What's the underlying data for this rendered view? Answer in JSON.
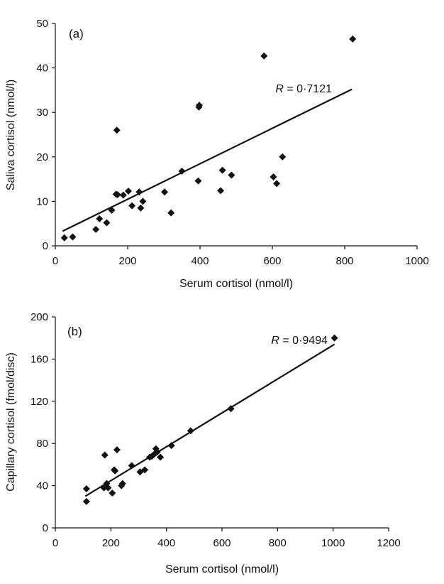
{
  "chart_data": [
    {
      "type": "scatter",
      "panel_label": "(a)",
      "xlabel": "Serum cortisol (nmol/l)",
      "ylabel": "Saliva cortisol (nmol/l)",
      "xlim": [
        0,
        1000
      ],
      "ylim": [
        0,
        50
      ],
      "xticks": [
        0,
        200,
        400,
        600,
        800,
        1000
      ],
      "yticks": [
        0,
        10,
        20,
        30,
        40,
        50
      ],
      "xtick_labels": [
        "0",
        "200",
        "400",
        "600",
        "800",
        "1000"
      ],
      "ytick_labels": [
        "0",
        "10",
        "20",
        "30",
        "40",
        "50"
      ],
      "grid": false,
      "annotation": {
        "r_symbol": "R",
        "r_value": " = 0·7121"
      },
      "trendline": {
        "x": [
          20,
          820
        ],
        "y": [
          3.3,
          35.2
        ]
      },
      "points": [
        [
          25,
          1.8
        ],
        [
          48,
          2.0
        ],
        [
          112,
          3.7
        ],
        [
          122,
          6.1
        ],
        [
          142,
          5.2
        ],
        [
          156,
          8.0
        ],
        [
          168,
          11.6
        ],
        [
          172,
          11.5
        ],
        [
          170,
          26.0
        ],
        [
          188,
          11.4
        ],
        [
          202,
          12.3
        ],
        [
          212,
          9.0
        ],
        [
          232,
          12.1
        ],
        [
          236,
          8.5
        ],
        [
          242,
          10.0
        ],
        [
          302,
          12.1
        ],
        [
          320,
          7.4
        ],
        [
          350,
          16.8
        ],
        [
          395,
          14.6
        ],
        [
          397,
          31.2
        ],
        [
          398,
          31.6
        ],
        [
          457,
          12.4
        ],
        [
          462,
          17.0
        ],
        [
          487,
          15.9
        ],
        [
          577,
          42.7
        ],
        [
          603,
          15.5
        ],
        [
          612,
          14.0
        ],
        [
          628,
          20.0
        ],
        [
          822,
          46.5
        ]
      ]
    },
    {
      "type": "scatter",
      "panel_label": "(b)",
      "xlabel": "Serum cortisol (nmol/l)",
      "ylabel": "Capillary cortisol (fmol/disc)",
      "xlim": [
        0,
        1200
      ],
      "ylim": [
        0,
        200
      ],
      "xticks": [
        0,
        200,
        400,
        600,
        800,
        1000,
        1200
      ],
      "yticks": [
        0,
        40,
        80,
        120,
        160,
        200
      ],
      "xtick_labels": [
        "0",
        "200",
        "400",
        "600",
        "800",
        "1000",
        "1200"
      ],
      "ytick_labels": [
        "0",
        "40",
        "80",
        "120",
        "160",
        "200"
      ],
      "grid": false,
      "annotation": {
        "r_symbol": "R",
        "r_value": " = 0·9494"
      },
      "trendline": {
        "x": [
          108,
          1005
        ],
        "y": [
          30.0,
          174.0
        ]
      },
      "points": [
        [
          112,
          25
        ],
        [
          112,
          37
        ],
        [
          175,
          38
        ],
        [
          178,
          69
        ],
        [
          185,
          42
        ],
        [
          190,
          38
        ],
        [
          205,
          33
        ],
        [
          212,
          55
        ],
        [
          215,
          54
        ],
        [
          222,
          74
        ],
        [
          238,
          40
        ],
        [
          242,
          42
        ],
        [
          275,
          59
        ],
        [
          305,
          53
        ],
        [
          322,
          55
        ],
        [
          340,
          67
        ],
        [
          348,
          68
        ],
        [
          357,
          70
        ],
        [
          362,
          75
        ],
        [
          367,
          72
        ],
        [
          378,
          67
        ],
        [
          418,
          78
        ],
        [
          487,
          92
        ],
        [
          632,
          113
        ],
        [
          1005,
          180
        ]
      ]
    }
  ]
}
